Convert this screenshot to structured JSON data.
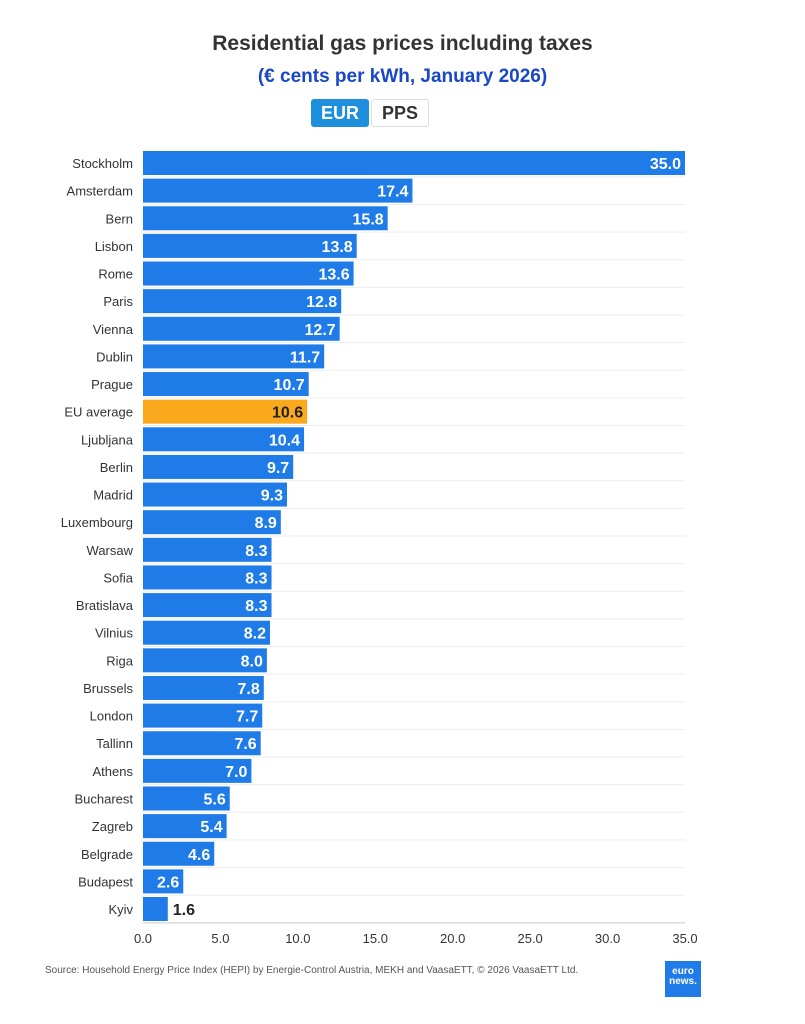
{
  "chart_data": {
    "type": "bar",
    "orientation": "horizontal",
    "title": "Residential gas prices including taxes",
    "subtitle": "(€ cents per kWh, January 2026)",
    "categories": [
      "Stockholm",
      "Amsterdam",
      "Bern",
      "Lisbon",
      "Rome",
      "Paris",
      "Vienna",
      "Dublin",
      "Prague",
      "EU average",
      "Ljubljana",
      "Berlin",
      "Madrid",
      "Luxembourg",
      "Warsaw",
      "Sofia",
      "Bratislava",
      "Vilnius",
      "Riga",
      "Brussels",
      "London",
      "Tallinn",
      "Athens",
      "Bucharest",
      "Zagreb",
      "Belgrade",
      "Budapest",
      "Kyiv"
    ],
    "values": [
      35.0,
      17.4,
      15.8,
      13.8,
      13.6,
      12.8,
      12.7,
      11.7,
      10.7,
      10.6,
      10.4,
      9.7,
      9.3,
      8.9,
      8.3,
      8.3,
      8.3,
      8.2,
      8.0,
      7.8,
      7.7,
      7.6,
      7.0,
      5.6,
      5.4,
      4.6,
      2.6,
      1.6
    ],
    "highlight": "EU average",
    "xlim": [
      0,
      35
    ],
    "xticks": [
      "0.0",
      "5.0",
      "10.0",
      "15.0",
      "20.0",
      "25.0",
      "30.0",
      "35.0"
    ],
    "xlabel": "",
    "ylabel": "",
    "grid": true,
    "colors": {
      "bar": "#1e7be8",
      "highlight": "#f9a91b"
    }
  },
  "toggle": {
    "eur": "EUR",
    "pps": "PPS"
  },
  "source": "Source: Household Energy Price Index (HEPI) by Energie-Control Austria, MEKH and VaasaETT, © 2026 VaasaETT Ltd.",
  "logo": {
    "line1": "euro",
    "line2": "news."
  }
}
